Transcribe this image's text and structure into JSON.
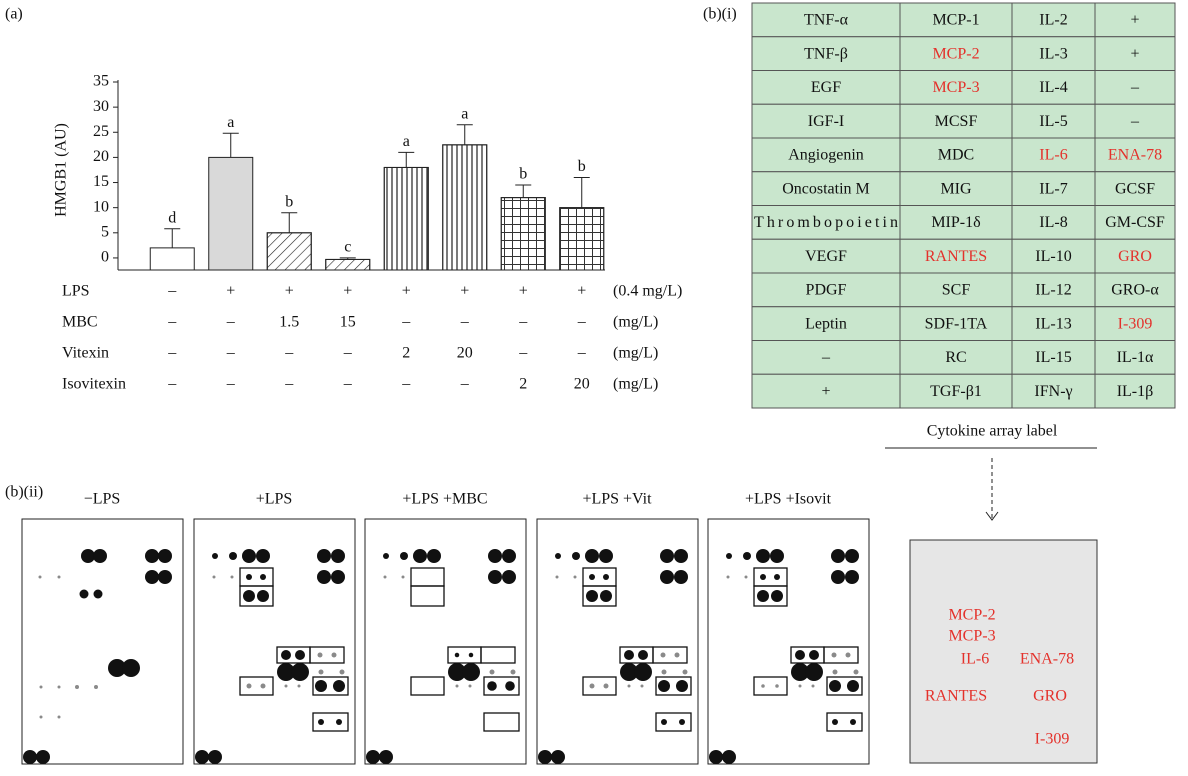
{
  "panel_labels": {
    "a": "(a)",
    "b_i": "(b)(i)",
    "b_ii": "(b)(ii)"
  },
  "chart_data": {
    "type": "bar",
    "y_label": "HMGB1 (AU)",
    "categories": [
      null,
      null,
      null,
      null,
      null,
      null,
      null,
      null
    ],
    "values": [
      2,
      20,
      5,
      -0.3,
      18,
      22.5,
      12,
      10
    ],
    "errors": [
      3.8,
      4.8,
      4,
      0.3,
      3,
      4,
      2.5,
      6
    ],
    "annotations": [
      "d",
      "a",
      "b",
      "c",
      "a",
      "a",
      "b",
      "b"
    ],
    "fills": [
      "#ffffff",
      "#d9d9d9",
      "#ffffff",
      "#ffffff",
      "#ffffff",
      "#ffffff",
      "#ffffff",
      "#ffffff"
    ],
    "patterns": [
      "none",
      "none",
      "diagonal",
      "diagonal",
      "vertical",
      "vertical",
      "grid",
      "grid"
    ],
    "ylim": [
      -2.4,
      35
    ],
    "yticks": [
      0,
      5,
      10,
      15,
      20,
      25,
      30,
      35
    ]
  },
  "treatment_rows": [
    {
      "name": "LPS",
      "values": [
        "–",
        "+",
        "+",
        "+",
        "+",
        "+",
        "+",
        "+"
      ],
      "unit": "(0.4 mg/L)"
    },
    {
      "name": "MBC",
      "values": [
        "–",
        "–",
        "1.5",
        "15",
        "–",
        "–",
        "–",
        "–"
      ],
      "unit": "(mg/L)"
    },
    {
      "name": "Vitexin",
      "values": [
        "–",
        "–",
        "–",
        "–",
        "2",
        "20",
        "–",
        "–"
      ],
      "unit": "(mg/L)"
    },
    {
      "name": "Isovitexin",
      "values": [
        "–",
        "–",
        "–",
        "–",
        "–",
        "–",
        "2",
        "20"
      ],
      "unit": "(mg/L)"
    }
  ],
  "cytokine_table": {
    "fill": "#c9e6cd",
    "rows": [
      [
        "TNF-α",
        "MCP-1",
        "IL-2",
        "+"
      ],
      [
        "TNF-β",
        {
          "text": "MCP-2",
          "color": "#e4312b"
        },
        "IL-3",
        "+"
      ],
      [
        "EGF",
        {
          "text": "MCP-3",
          "color": "#e4312b"
        },
        "IL-4",
        "–"
      ],
      [
        "IGF-I",
        "MCSF",
        "IL-5",
        "–"
      ],
      [
        "Angiogenin",
        "MDC",
        {
          "text": "IL-6",
          "color": "#e4312b"
        },
        {
          "text": "ENA-78",
          "color": "#e4312b"
        }
      ],
      [
        "Oncostatin M",
        "MIG",
        "IL-7",
        "GCSF"
      ],
      [
        "Thrombopoietin",
        "MIP-1δ",
        "IL-8",
        "GM-CSF"
      ],
      [
        "VEGF",
        {
          "text": "RANTES",
          "color": "#e4312b"
        },
        "IL-10",
        {
          "text": "GRO",
          "color": "#e4312b"
        }
      ],
      [
        "PDGF",
        "SCF",
        "IL-12",
        "GRO-α"
      ],
      [
        "Leptin",
        "SDF-1TA",
        "IL-13",
        {
          "text": "I-309",
          "color": "#e4312b"
        }
      ],
      [
        "–",
        "RC",
        "IL-15",
        "IL-1α"
      ],
      [
        "+",
        "TGF-β1",
        "IFN-γ",
        "IL-1β"
      ]
    ],
    "caption": "Cytokine array label"
  },
  "blots": {
    "titles": [
      "−LPS",
      "+LPS",
      "+LPS +MBC",
      "+LPS +Vit",
      "+LPS +Isovit"
    ]
  },
  "array_legend": {
    "color": "#e4312b",
    "labels": [
      "MCP-2",
      "MCP-3",
      "IL-6",
      "ENA-78",
      "RANTES",
      "GRO",
      "I-309"
    ]
  }
}
